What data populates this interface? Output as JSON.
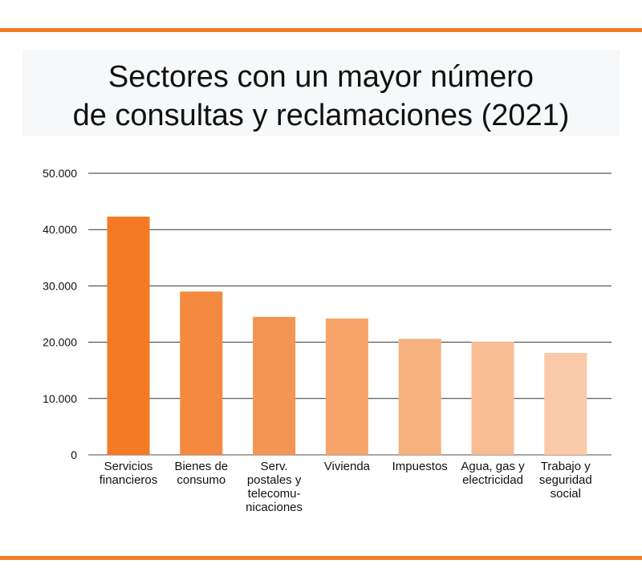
{
  "accent_color": "#F47A25",
  "chart_data": {
    "type": "bar",
    "title_lines": [
      "Sectores con un mayor número",
      "de consultas y reclamaciones (2021)"
    ],
    "categories": [
      [
        "Servicios",
        "financieros"
      ],
      [
        "Bienes de",
        "consumo"
      ],
      [
        "Serv.",
        "postales y",
        "telecomu-",
        "nicaciones"
      ],
      [
        "Vivienda"
      ],
      [
        "Impuestos"
      ],
      [
        "Agua, gas y",
        "electricidad"
      ],
      [
        "Trabajo y",
        "seguridad",
        "social"
      ]
    ],
    "values": [
      42300,
      29000,
      24500,
      24200,
      20600,
      20100,
      18100
    ],
    "colors": [
      "#F47A25",
      "#F5893F",
      "#F59553",
      "#F6A469",
      "#F7B17F",
      "#F8BC93",
      "#FAC9A8"
    ],
    "ylim": [
      0,
      50000
    ],
    "yticks": [
      0,
      10000,
      20000,
      30000,
      40000,
      50000
    ],
    "ytick_labels": [
      "0",
      "10.000",
      "20.000",
      "30.000",
      "40.000",
      "50.000"
    ],
    "grid": true,
    "legend": "none",
    "xlabel": "",
    "ylabel": ""
  }
}
